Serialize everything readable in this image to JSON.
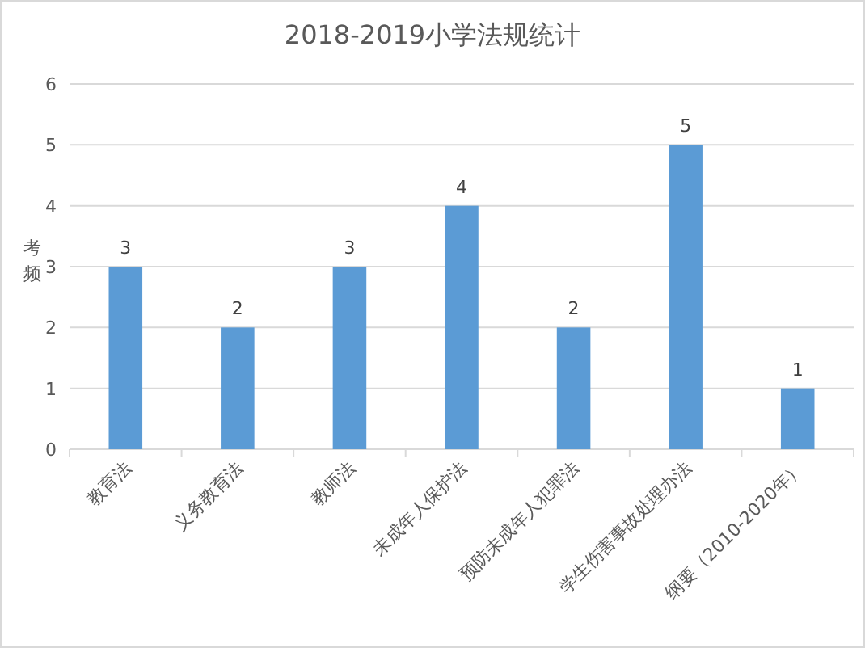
{
  "chart_data": {
    "type": "bar",
    "title": "2018-2019小学法规统计",
    "ylabel": "考频",
    "categories": [
      "教育法",
      "义务教育法",
      "教师法",
      "未成年人保护法",
      "预防未成年人犯罪法",
      "学生伤害事故处理办法",
      "纲要（2010-2020年）"
    ],
    "values": [
      3,
      2,
      3,
      4,
      2,
      5,
      1
    ],
    "color": "#5b9bd5",
    "ylim": [
      0,
      6
    ],
    "yticks": [
      0,
      1,
      2,
      3,
      4,
      5,
      6
    ],
    "grid": "y",
    "data_labels": true
  }
}
